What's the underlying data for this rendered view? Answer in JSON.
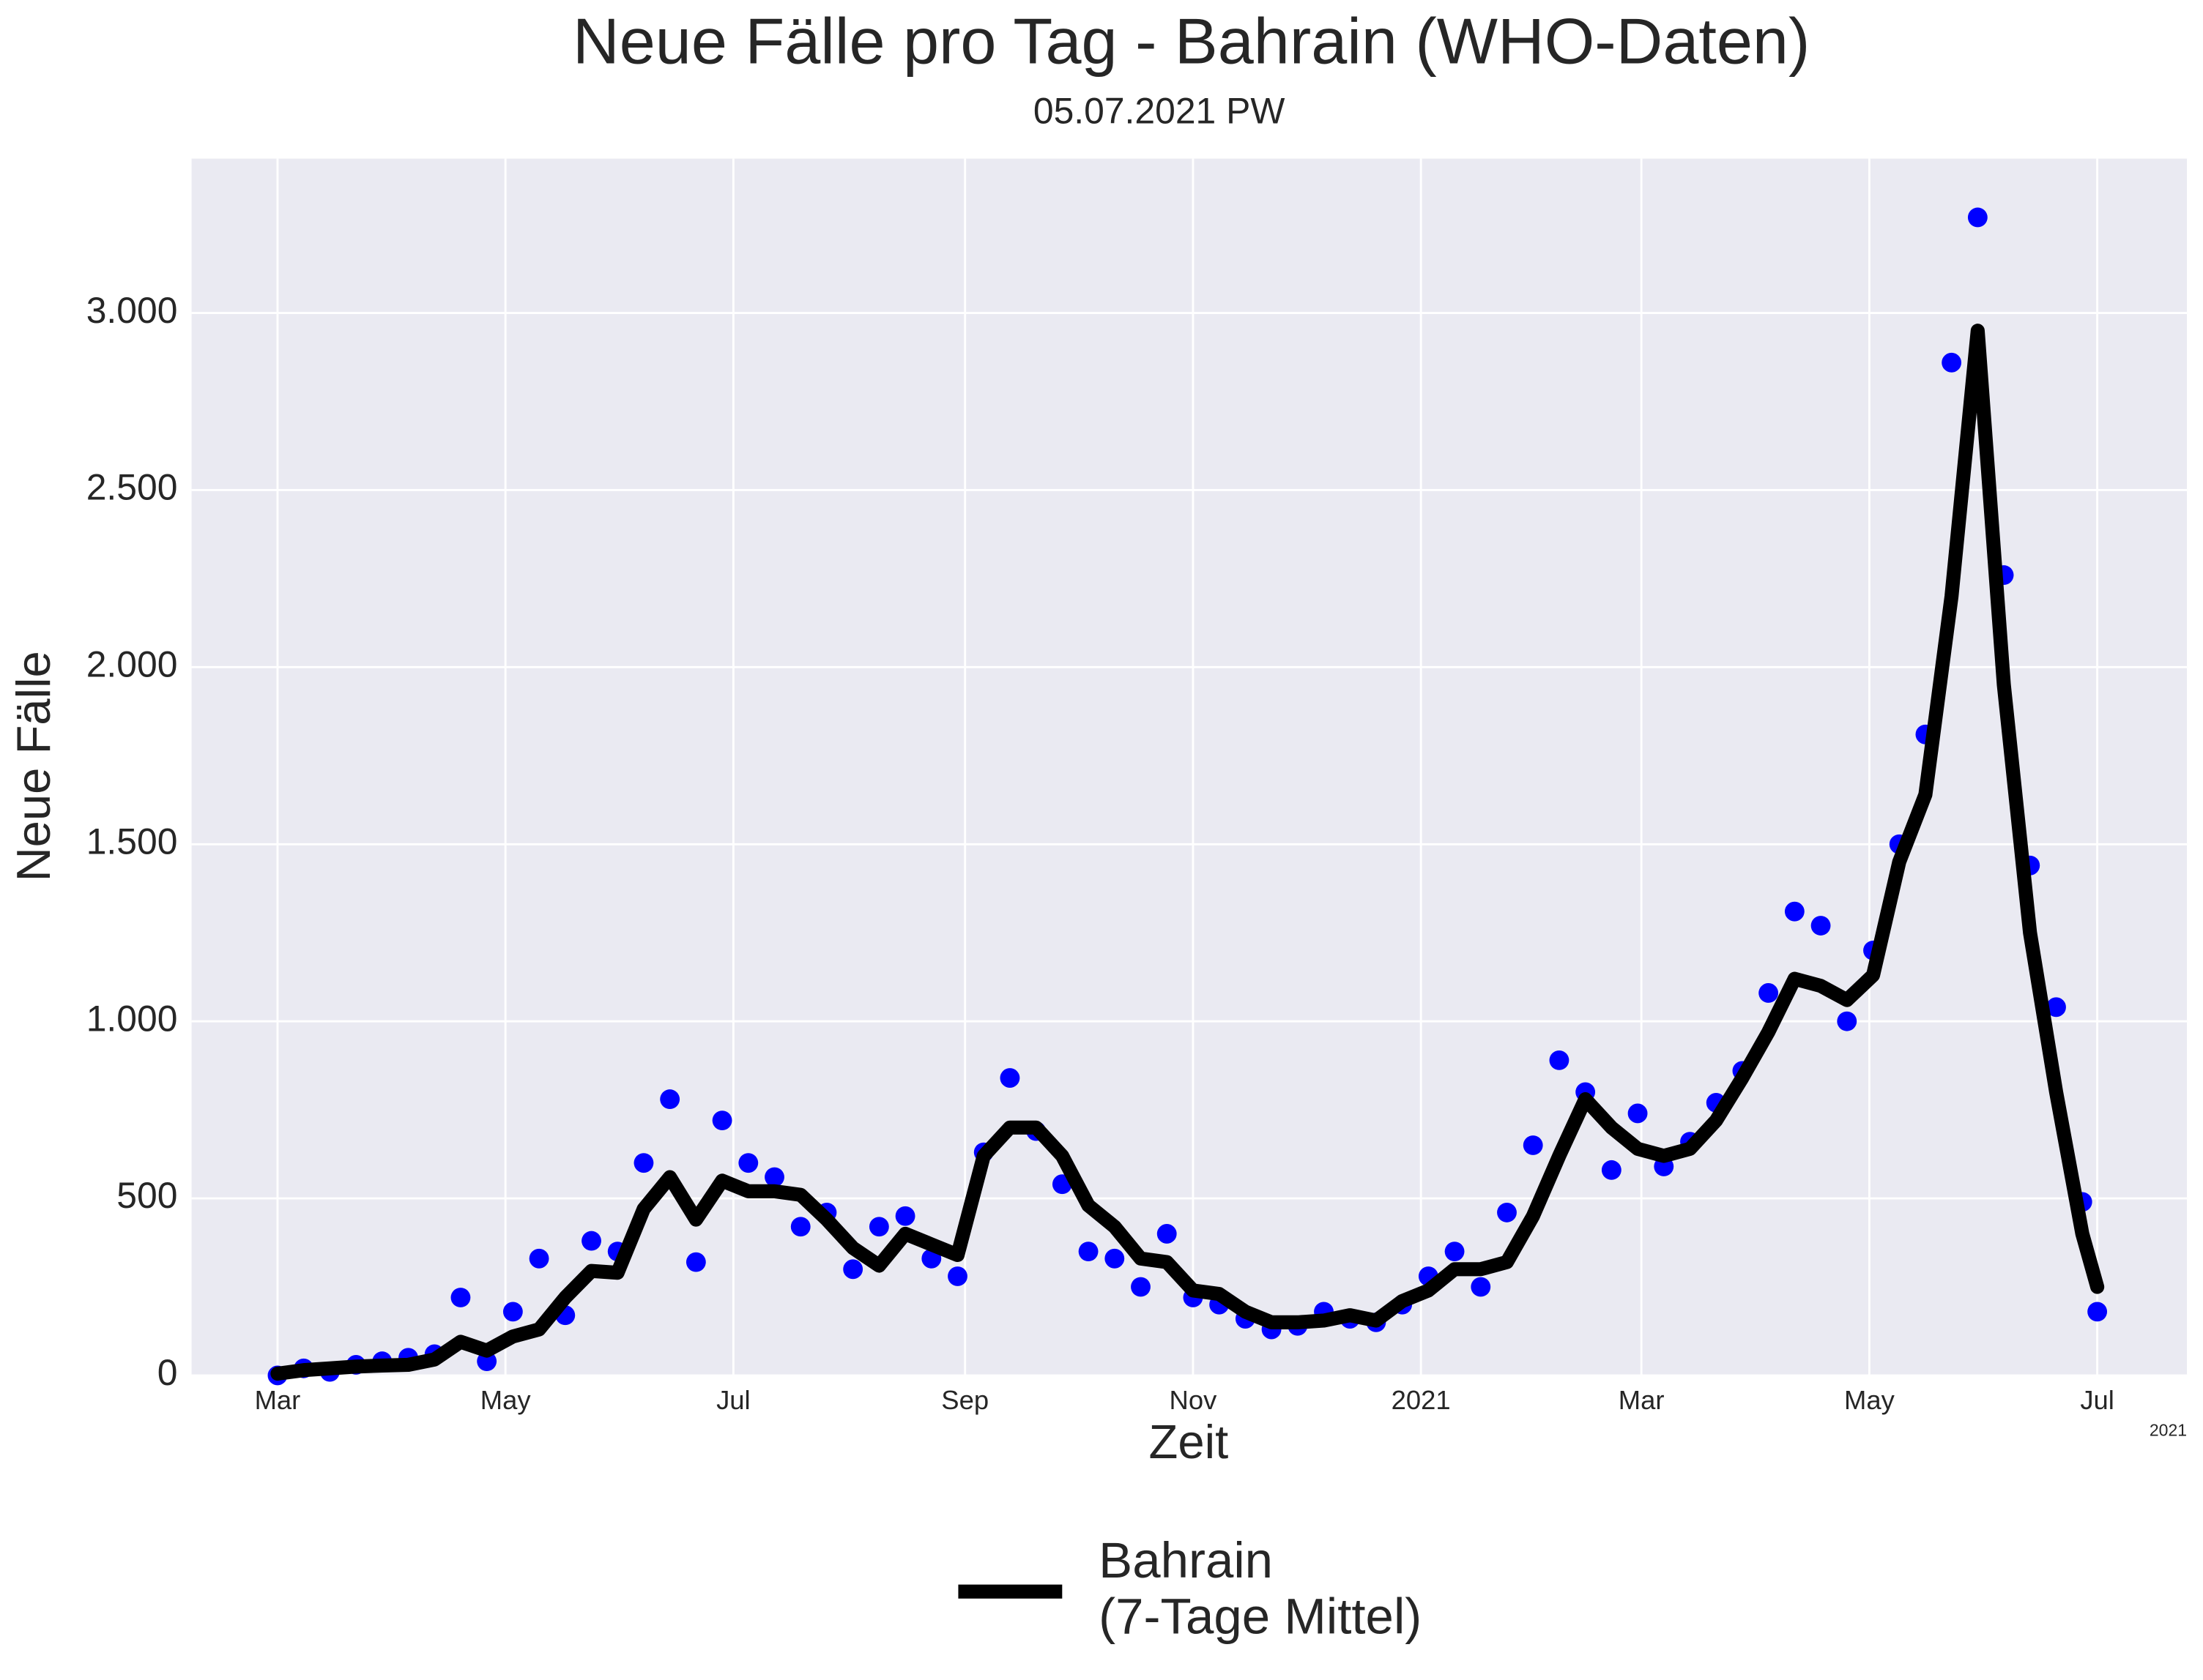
{
  "chart_data": {
    "type": "line",
    "title": "Neue Fälle pro Tag - Bahrain (WHO-Daten)",
    "subtitle": "05.07.2021 PW",
    "x_label": "Zeit",
    "y_label": "Neue Fälle",
    "x_offset_label": "2021",
    "x": [
      "2020-03-01",
      "2020-03-08",
      "2020-03-15",
      "2020-03-22",
      "2020-03-29",
      "2020-04-05",
      "2020-04-12",
      "2020-04-19",
      "2020-04-26",
      "2020-05-03",
      "2020-05-10",
      "2020-05-17",
      "2020-05-24",
      "2020-05-31",
      "2020-06-07",
      "2020-06-14",
      "2020-06-21",
      "2020-06-28",
      "2020-07-05",
      "2020-07-12",
      "2020-07-19",
      "2020-07-26",
      "2020-08-02",
      "2020-08-09",
      "2020-08-16",
      "2020-08-23",
      "2020-08-30",
      "2020-09-06",
      "2020-09-13",
      "2020-09-20",
      "2020-09-27",
      "2020-10-04",
      "2020-10-11",
      "2020-10-18",
      "2020-10-25",
      "2020-11-01",
      "2020-11-08",
      "2020-11-15",
      "2020-11-22",
      "2020-11-29",
      "2020-12-06",
      "2020-12-13",
      "2020-12-20",
      "2020-12-27",
      "2021-01-03",
      "2021-01-10",
      "2021-01-17",
      "2021-01-24",
      "2021-01-31",
      "2021-02-07",
      "2021-02-14",
      "2021-02-21",
      "2021-02-28",
      "2021-03-07",
      "2021-03-14",
      "2021-03-21",
      "2021-03-28",
      "2021-04-04",
      "2021-04-11",
      "2021-04-18",
      "2021-04-25",
      "2021-05-02",
      "2021-05-09",
      "2021-05-16",
      "2021-05-23",
      "2021-05-30",
      "2021-06-06",
      "2021-06-13",
      "2021-06-20",
      "2021-06-27",
      "2021-07-01"
    ],
    "points": {
      "color": "#0000ff",
      "values": [
        0,
        20,
        10,
        30,
        40,
        50,
        60,
        220,
        40,
        180,
        330,
        170,
        380,
        350,
        600,
        780,
        320,
        720,
        600,
        560,
        420,
        460,
        300,
        420,
        450,
        330,
        280,
        630,
        840,
        690,
        540,
        350,
        330,
        250,
        400,
        220,
        200,
        160,
        130,
        140,
        180,
        160,
        150,
        200,
        280,
        350,
        250,
        460,
        650,
        890,
        800,
        580,
        740,
        590,
        660,
        770,
        860,
        1080,
        1310,
        1270,
        1000,
        1200,
        1500,
        1810,
        2860,
        3270,
        2260,
        1440,
        1040,
        490,
        180
      ]
    },
    "series": [
      {
        "name": "Bahrain\n(7-Tage Mittel)",
        "color": "#000000",
        "values": [
          5,
          15,
          20,
          25,
          28,
          30,
          45,
          95,
          70,
          110,
          130,
          220,
          295,
          290,
          470,
          560,
          440,
          550,
          520,
          520,
          510,
          440,
          360,
          310,
          400,
          370,
          340,
          620,
          700,
          700,
          620,
          480,
          420,
          330,
          320,
          240,
          230,
          180,
          150,
          150,
          155,
          170,
          155,
          210,
          240,
          300,
          300,
          320,
          450,
          620,
          780,
          700,
          640,
          620,
          640,
          720,
          840,
          970,
          1120,
          1100,
          1060,
          1130,
          1450,
          1640,
          2200,
          2950,
          1950,
          1250,
          800,
          400,
          250
        ]
      }
    ],
    "xlim": [
      "2020-02-07",
      "2021-07-25"
    ],
    "xticks": [
      {
        "value": "2020-03-01",
        "label": "Mar"
      },
      {
        "value": "2020-05-01",
        "label": "May"
      },
      {
        "value": "2020-07-01",
        "label": "Jul"
      },
      {
        "value": "2020-09-01",
        "label": "Sep"
      },
      {
        "value": "2020-11-01",
        "label": "Nov"
      },
      {
        "value": "2021-01-01",
        "label": "2021"
      },
      {
        "value": "2021-03-01",
        "label": "Mar"
      },
      {
        "value": "2021-05-01",
        "label": "May"
      },
      {
        "value": "2021-07-01",
        "label": "Jul"
      }
    ],
    "ylim": [
      0,
      3436
    ],
    "yticks": [
      0,
      500,
      {
        "value": 1000,
        "label": "1.000"
      },
      {
        "value": 1500,
        "label": "1.500"
      },
      {
        "value": 2000,
        "label": "2.000"
      },
      {
        "value": 2500,
        "label": "2.500"
      },
      {
        "value": 3000,
        "label": "3.000"
      }
    ],
    "grid": true,
    "legend": "bottom"
  }
}
